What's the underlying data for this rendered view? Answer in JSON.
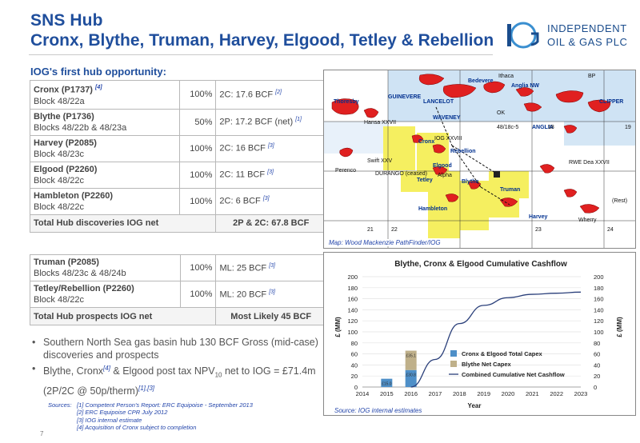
{
  "title": "SNS Hub",
  "subtitle": "Cronx, Blythe, Truman, Harvey, Elgood, Tetley & Rebellion",
  "logo": {
    "line1": "INDEPENDENT",
    "line2": "OIL & GAS PLC",
    "mark": "IOG"
  },
  "section_title": "IOG's first hub opportunity:",
  "discoveries": [
    {
      "name": "Cronx (P1737)",
      "ref_name": "[4]",
      "block": "Block 48/22a",
      "pct": "100%",
      "reserve": "2C: 17.6 BCF",
      "ref": "[2]"
    },
    {
      "name": "Blythe (P1736)",
      "ref_name": "",
      "block": "Blocks 48/22b & 48/23a",
      "pct": "50%",
      "reserve": "2P: 17.2 BCF (net)",
      "ref": "[1]"
    },
    {
      "name": "Harvey (P2085)",
      "ref_name": "",
      "block": "Block 48/23c",
      "pct": "100%",
      "reserve": "2C: 16 BCF",
      "ref": "[3]"
    },
    {
      "name": "Elgood (P2260)",
      "ref_name": "",
      "block": "Block 48/22c",
      "pct": "100%",
      "reserve": "2C:  11 BCF",
      "ref": "[3]"
    },
    {
      "name": "Hambleton (P2260)",
      "ref_name": "",
      "block": "Block 48/22c",
      "pct": "100%",
      "reserve": "2C:  6 BCF",
      "ref": "[3]"
    }
  ],
  "discoveries_total": {
    "label": "Total Hub discoveries IOG net",
    "value": "2P & 2C: 67.8 BCF"
  },
  "prospects": [
    {
      "name": "Truman (P2085)",
      "block": "Blocks 48/23c & 48/24b",
      "pct": "100%",
      "reserve": "ML: 25 BCF",
      "ref": "[3]"
    },
    {
      "name": "Tetley/Rebellion (P2260)",
      "block": "Block 48/22c",
      "pct": "100%",
      "reserve": "ML: 20 BCF",
      "ref": "[3]"
    }
  ],
  "prospects_total": {
    "label": "Total Hub prospects IOG net",
    "value": "Most Likely 45 BCF"
  },
  "bullets": {
    "b1": "Southern North Sea gas basin hub 130 BCF Gross (mid-case) discoveries and prospects",
    "b2_pre": "Blythe, Cronx",
    "b2_ref1": "[4]",
    "b2_mid": " & Elgood post tax NPV",
    "b2_sub": "10",
    "b2_post": " net to IOG = £71.4m (2P/2C @ 50p/therm)",
    "b2_ref2": "[1],[3]"
  },
  "sources": {
    "label": "Sources:",
    "lines": [
      "[1] Competent Person's Report: ERC Equipoise - September 2013",
      "[2] ERC Equipoise CPR July 2012",
      "[3] IOG internal estimate",
      "[4] Acquisition of Cronx subject to completion"
    ]
  },
  "page_number": "7",
  "map": {
    "caption": "Map: Wood Mackenzie PathFinder/IOG",
    "labels": {
      "guinevere": "GUINEVERE",
      "lancelot": "LANCELOT",
      "waveney": "WAVENEY",
      "bedevere": "Bedevere",
      "ithaca": "Ithaca",
      "anglia_nw": "Anglia NW",
      "anglia": "ANGLIA",
      "thoresby": "Thoresby",
      "hansa": "Hansa XXVII",
      "perenco": "Perenco",
      "swift": "Swift XXV",
      "cronx": "Cronx",
      "iog": "IOG XXVIII",
      "rebellion": "Rebellion",
      "elgood": "Elgood",
      "alpha": "Alpha",
      "tetley": "Tetley",
      "blythe": "Blythe",
      "durango": "DURANGO (ceased)",
      "hambleton": "Hambleton",
      "truman": "Truman",
      "harvey": "Harvey",
      "wherry": "Wherry",
      "clipper": "CLIPPER",
      "rwe": "RWE Dea XXVII",
      "rest": "(Rest)",
      "bp": "BP",
      "ok": "OK",
      "block_18c5": "48/18c-5",
      "block_21": "21",
      "block_22": "22",
      "block_23": "23",
      "block_24": "24",
      "block_19": "19",
      "block_18": "18"
    }
  },
  "chart_data": {
    "type": "bar",
    "title": "Blythe, Cronx & Elgood Cumulative Cashflow",
    "xlabel": "Year",
    "ylabel": "£ (MM)",
    "ylabel_right": "£ (MM)",
    "ylim": [
      0,
      200
    ],
    "yticks": [
      0,
      20,
      40,
      60,
      80,
      100,
      120,
      140,
      160,
      180,
      200
    ],
    "categories": [
      "2014",
      "2015",
      "2016",
      "2017",
      "2018",
      "2019",
      "2020",
      "2021",
      "2022",
      "2023"
    ],
    "series": [
      {
        "name": "Cronx & Elgood Total Capex",
        "kind": "bar",
        "color": "#4e8fc8",
        "values": [
          0,
          15.0,
          30.8,
          0,
          0,
          0,
          0,
          0,
          0,
          0
        ],
        "labels": [
          "",
          "£15.0",
          "£30.8",
          "",
          "",
          "",
          "",
          "",
          "",
          ""
        ]
      },
      {
        "name": "Blythe Net Capex",
        "kind": "bar",
        "color": "#bfb08a",
        "values": [
          0,
          0,
          35.1,
          0,
          0,
          0,
          0,
          0,
          0,
          0
        ],
        "labels": [
          "",
          "",
          "£35.1",
          "",
          "",
          "",
          "",
          "",
          "",
          ""
        ]
      },
      {
        "name": "Combined Cumulative Net Cashflow",
        "kind": "line",
        "color": "#2a3f7a",
        "values": [
          null,
          null,
          0,
          50,
          115,
          148,
          162,
          168,
          170,
          172
        ]
      }
    ],
    "legend": "right",
    "grid": true,
    "source": "Source: IOG  internal estimates"
  }
}
